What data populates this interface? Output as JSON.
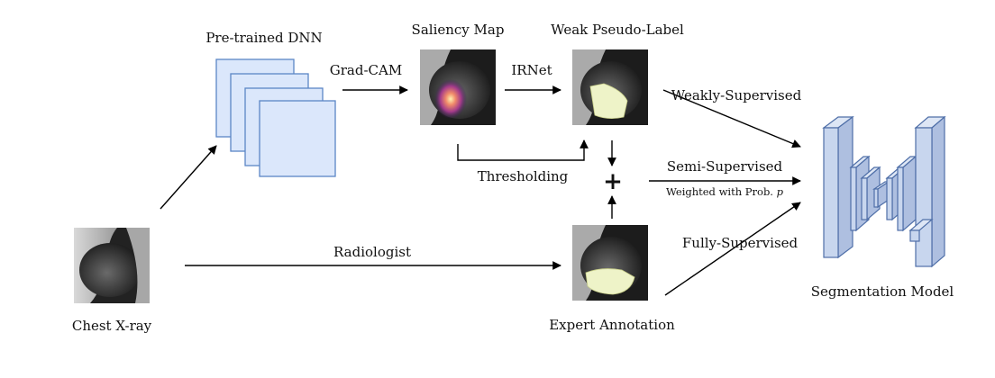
{
  "labels": {
    "pretrained_dnn": "Pre-trained DNN",
    "saliency_map": "Saliency Map",
    "weak_pseudo_label": "Weak Pseudo-Label",
    "grad_cam": "Grad-CAM",
    "irnet": "IRNet",
    "thresholding": "Thresholding",
    "weakly_supervised": "Weakly-Supervised",
    "semi_supervised": "Semi-Supervised",
    "weighted_prefix": "Weighted with Prob. ",
    "weighted_var": "p",
    "fully_supervised": "Fully-Supervised",
    "radiologist": "Radiologist",
    "chest_xray": "Chest X-ray",
    "expert_annotation": "Expert Annotation",
    "segmentation_model": "Segmentation Model",
    "plus": "+"
  },
  "colors": {
    "dnn_fill": "#dbe7fb",
    "dnn_stroke": "#5b86c5",
    "model_fill": "#c8d6ee",
    "model_stroke": "#4f6fa8",
    "mask_fill": "#eef3c8",
    "arrow": "#000000"
  }
}
